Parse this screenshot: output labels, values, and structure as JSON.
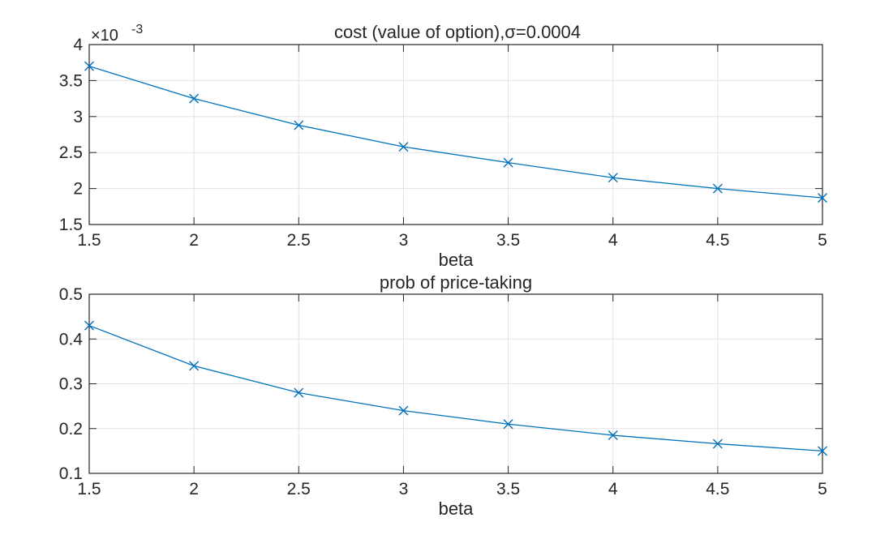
{
  "chart_data": [
    {
      "type": "line",
      "title": "cost (value of option),σ=0.0004",
      "xlabel": "beta",
      "ylabel": "",
      "xlim": [
        1.5,
        5
      ],
      "ylim": [
        0.0015,
        0.004
      ],
      "y_exponent_label": "×10",
      "y_exponent_value": "-3",
      "x_ticks": [
        1.5,
        2,
        2.5,
        3,
        3.5,
        4,
        4.5,
        5
      ],
      "x_tick_labels": [
        "1.5",
        "2",
        "2.5",
        "3",
        "3.5",
        "4",
        "4.5",
        "5"
      ],
      "y_ticks": [
        0.0015,
        0.002,
        0.0025,
        0.003,
        0.0035,
        0.004
      ],
      "y_tick_labels": [
        "1.5",
        "2",
        "2.5",
        "3",
        "3.5",
        "4"
      ],
      "grid": true,
      "marker": "x",
      "color": "#0072BD",
      "series": [
        {
          "x": [
            1.5,
            2,
            2.5,
            3,
            3.5,
            4,
            4.5,
            5
          ],
          "values": [
            0.0037,
            0.00325,
            0.00288,
            0.00258,
            0.00236,
            0.00215,
            0.002,
            0.00187
          ]
        }
      ]
    },
    {
      "type": "line",
      "title": "prob of price-taking",
      "xlabel": "beta",
      "ylabel": "",
      "xlim": [
        1.5,
        5
      ],
      "ylim": [
        0.1,
        0.5
      ],
      "x_ticks": [
        1.5,
        2,
        2.5,
        3,
        3.5,
        4,
        4.5,
        5
      ],
      "x_tick_labels": [
        "1.5",
        "2",
        "2.5",
        "3",
        "3.5",
        "4",
        "4.5",
        "5"
      ],
      "y_ticks": [
        0.1,
        0.2,
        0.3,
        0.4,
        0.5
      ],
      "y_tick_labels": [
        "0.1",
        "0.2",
        "0.3",
        "0.4",
        "0.5"
      ],
      "grid": true,
      "marker": "x",
      "color": "#0072BD",
      "series": [
        {
          "x": [
            1.5,
            2,
            2.5,
            3,
            3.5,
            4,
            4.5,
            5
          ],
          "values": [
            0.43,
            0.34,
            0.28,
            0.24,
            0.21,
            0.185,
            0.166,
            0.15
          ]
        }
      ]
    }
  ]
}
